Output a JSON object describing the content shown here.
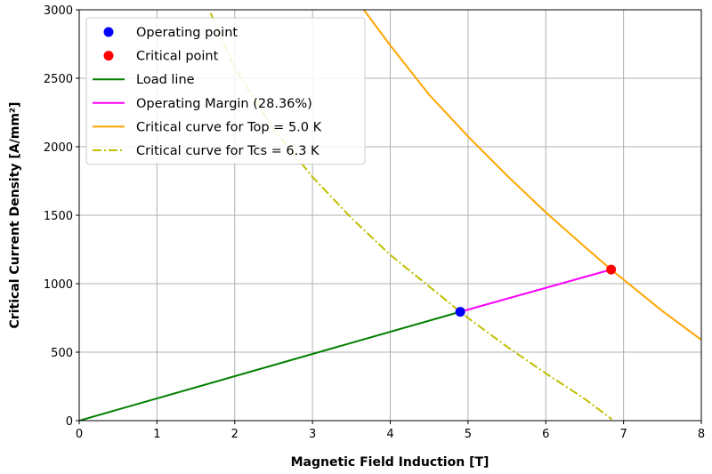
{
  "chart_data": {
    "type": "line",
    "title": "",
    "xlabel": "Magnetic Field Induction [T]",
    "ylabel": "Critical Current Density [A/mm²]",
    "xlim": [
      0,
      8
    ],
    "ylim": [
      0,
      3000
    ],
    "xticks": [
      0,
      1,
      2,
      3,
      4,
      5,
      6,
      7,
      8
    ],
    "yticks": [
      0,
      500,
      1000,
      1500,
      2000,
      2500,
      3000
    ],
    "grid": true,
    "legend_position": "upper-left",
    "series": [
      {
        "name": "Operating point",
        "kind": "scatter",
        "color": "#0000ff",
        "points": [
          [
            4.9,
            795
          ]
        ]
      },
      {
        "name": "Critical point",
        "kind": "scatter",
        "color": "#ff0000",
        "points": [
          [
            6.84,
            1103
          ]
        ]
      },
      {
        "name": "Load line",
        "kind": "line",
        "color": "#008000",
        "style": "solid",
        "points": [
          [
            0,
            0
          ],
          [
            4.9,
            795
          ]
        ]
      },
      {
        "name": "Operating Margin (28.36%)",
        "kind": "line",
        "color": "#ff00ff",
        "style": "solid",
        "points": [
          [
            4.9,
            795
          ],
          [
            6.84,
            1103
          ]
        ]
      },
      {
        "name": "Critical curve for Top = 5.0 K",
        "kind": "line",
        "color": "#ffa500",
        "style": "solid",
        "points": [
          [
            3.66,
            3000
          ],
          [
            4.0,
            2740
          ],
          [
            4.5,
            2380
          ],
          [
            5.0,
            2075
          ],
          [
            5.5,
            1790
          ],
          [
            6.0,
            1520
          ],
          [
            6.5,
            1270
          ],
          [
            6.84,
            1103
          ],
          [
            7.0,
            1030
          ],
          [
            7.5,
            800
          ],
          [
            8.0,
            590
          ]
        ]
      },
      {
        "name": "Critical curve for Tcs = 6.3 K",
        "kind": "line",
        "color": "#bfbf00",
        "style": "dashdot",
        "points": [
          [
            1.69,
            2975
          ],
          [
            2.0,
            2570
          ],
          [
            2.5,
            2130
          ],
          [
            3.0,
            1780
          ],
          [
            3.5,
            1480
          ],
          [
            4.0,
            1210
          ],
          [
            4.5,
            980
          ],
          [
            4.9,
            795
          ],
          [
            5.0,
            750
          ],
          [
            5.5,
            540
          ],
          [
            6.0,
            345
          ],
          [
            6.5,
            160
          ],
          [
            6.85,
            10
          ]
        ]
      }
    ]
  }
}
